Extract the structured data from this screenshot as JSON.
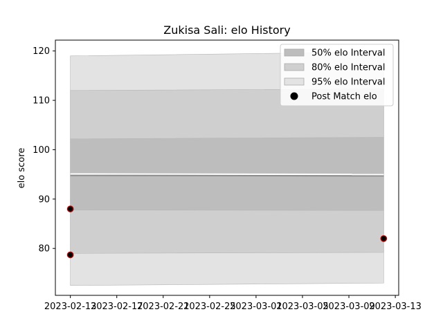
{
  "chart_data": {
    "type": "area",
    "title": "Zukisa Sali: elo History",
    "xlabel": "",
    "ylabel": "elo score",
    "xlim": [
      "2023-02-11T17:00",
      "2023-03-13T07:00"
    ],
    "ylim": [
      70.5,
      122.2
    ],
    "x_ticks": [
      "2023-02-13",
      "2023-02-17",
      "2023-02-21",
      "2023-02-25",
      "2023-03-01",
      "2023-03-05",
      "2023-03-09",
      "2023-03-13"
    ],
    "y_ticks": [
      80,
      90,
      100,
      110,
      120
    ],
    "grid": false,
    "legend_position": "top-right",
    "legend": [
      {
        "label": "50% elo Interval",
        "kind": "band"
      },
      {
        "label": "80% elo Interval",
        "kind": "band"
      },
      {
        "label": "95% elo Interval",
        "kind": "band"
      },
      {
        "label": "Post Match elo",
        "kind": "marker"
      }
    ],
    "x": [
      "2023-02-13",
      "2023-03-12"
    ],
    "mean": [
      94.8,
      94.7
    ],
    "bands": [
      {
        "name": "95% elo Interval",
        "lower": [
          72.5,
          73.0
        ],
        "upper": [
          119.0,
          119.8
        ],
        "color": "#e3e3e3"
      },
      {
        "name": "80% elo Interval",
        "lower": [
          79.0,
          79.2
        ],
        "upper": [
          112.0,
          112.3
        ],
        "color": "#cfcfcf"
      },
      {
        "name": "50% elo Interval",
        "lower": [
          87.8,
          87.7
        ],
        "upper": [
          102.2,
          102.5
        ],
        "color": "#bdbdbd"
      }
    ],
    "points": [
      {
        "x": "2023-02-13",
        "y": 88.0
      },
      {
        "x": "2023-02-13",
        "y": 78.7
      },
      {
        "x": "2023-03-12",
        "y": 82.0
      }
    ],
    "colors": {
      "mean_line": "#8c8c8c",
      "mean_highlight": "#ffffff",
      "point_fill": "#000000",
      "point_edge": "#c00000"
    }
  }
}
